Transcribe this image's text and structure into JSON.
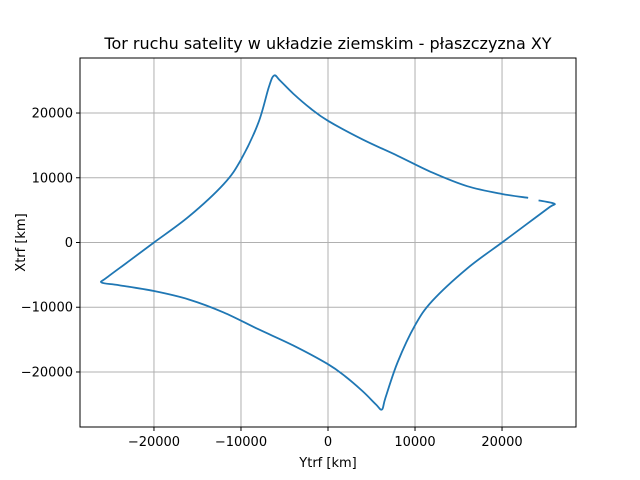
{
  "chart_data": {
    "type": "line",
    "title": "Tor ruchu satelity w układzie ziemskim - płaszczyzna XY",
    "xlabel": "Ytrf [km]",
    "ylabel": "Xtrf [km]",
    "xlim": [
      -28500,
      28500
    ],
    "ylim": [
      -28500,
      28500
    ],
    "xticks": [
      -20000,
      -10000,
      0,
      10000,
      20000
    ],
    "yticks": [
      -20000,
      -10000,
      0,
      10000,
      20000
    ],
    "xtick_labels": [
      "−20000",
      "−10000",
      "0",
      "10000",
      "20000"
    ],
    "ytick_labels": [
      "−20000",
      "−10000",
      "0",
      "10000",
      "20000"
    ],
    "grid": true,
    "color": "#1f77b4",
    "series": [
      {
        "values": [
          [
            23000,
            6900
          ],
          [
            20000,
            7500
          ],
          [
            16000,
            8700
          ],
          [
            12000,
            10800
          ],
          [
            8000,
            13400
          ],
          [
            4000,
            15900
          ],
          [
            0,
            18800
          ],
          [
            -2000,
            20700
          ],
          [
            -4000,
            23000
          ],
          [
            -5500,
            25000
          ],
          [
            -6200,
            25800
          ],
          [
            -6800,
            24000
          ],
          [
            -8000,
            18500
          ],
          [
            -10000,
            12800
          ],
          [
            -12000,
            9000
          ],
          [
            -16000,
            4000
          ],
          [
            -20000,
            0
          ],
          [
            -23000,
            -3000
          ],
          [
            -25500,
            -5500
          ],
          [
            -26000,
            -6200
          ],
          [
            -24000,
            -6600
          ],
          [
            -20000,
            -7500
          ],
          [
            -16000,
            -8800
          ],
          [
            -12000,
            -10800
          ],
          [
            -8000,
            -13400
          ],
          [
            -4000,
            -15900
          ],
          [
            0,
            -18800
          ],
          [
            2000,
            -20700
          ],
          [
            4000,
            -23000
          ],
          [
            5500,
            -25000
          ],
          [
            6200,
            -25800
          ],
          [
            6600,
            -24000
          ],
          [
            8000,
            -18500
          ],
          [
            10000,
            -12800
          ],
          [
            12000,
            -9000
          ],
          [
            16000,
            -4000
          ],
          [
            20000,
            0
          ],
          [
            23000,
            3000
          ],
          [
            25500,
            5500
          ],
          [
            26000,
            6000
          ],
          [
            24200,
            6500
          ]
        ]
      }
    ]
  }
}
